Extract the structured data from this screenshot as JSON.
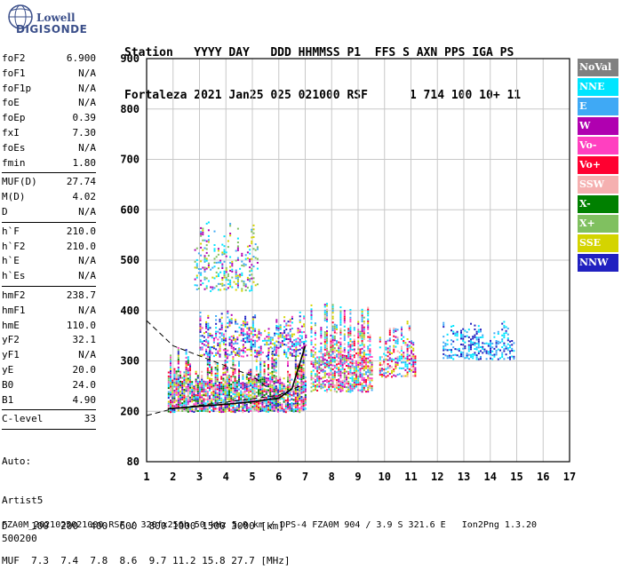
{
  "logo": {
    "line1": "Lowell",
    "line2": "DIGISONDE"
  },
  "header": {
    "line1": "Station   YYYY DAY   DDD HHMMSS P1  FFS S AXN PPS IGA PS",
    "line2": "Fortaleza 2021 Jan25 025 021000 RSF      1 714 100 10+ 11"
  },
  "params": [
    {
      "label": "foF2",
      "value": "6.900"
    },
    {
      "label": "foF1",
      "value": "N/A"
    },
    {
      "label": "foF1p",
      "value": "N/A"
    },
    {
      "label": "foE",
      "value": "N/A"
    },
    {
      "label": "foEp",
      "value": "0.39"
    },
    {
      "label": "fxI",
      "value": "7.30"
    },
    {
      "label": "foEs",
      "value": "N/A"
    },
    {
      "label": "fmin",
      "value": "1.80"
    },
    {
      "sep": true
    },
    {
      "label": "MUF(D)",
      "value": "27.74"
    },
    {
      "label": "M(D)",
      "value": "4.02"
    },
    {
      "label": "D",
      "value": "N/A"
    },
    {
      "sep": true
    },
    {
      "label": "h`F",
      "value": "210.0"
    },
    {
      "label": "h`F2",
      "value": "210.0"
    },
    {
      "label": "h`E",
      "value": "N/A"
    },
    {
      "label": "h`Es",
      "value": "N/A"
    },
    {
      "sep": true
    },
    {
      "label": "hmF2",
      "value": "238.7"
    },
    {
      "label": "hmF1",
      "value": "N/A"
    },
    {
      "label": "hmE",
      "value": "110.0"
    },
    {
      "label": "yF2",
      "value": "32.1"
    },
    {
      "label": "yF1",
      "value": "N/A"
    },
    {
      "label": "yE",
      "value": "20.0"
    },
    {
      "label": "B0",
      "value": "24.0"
    },
    {
      "label": "B1",
      "value": "4.90"
    },
    {
      "sep": true
    },
    {
      "label": "C-level",
      "value": "33"
    },
    {
      "sep": true
    }
  ],
  "auto": {
    "line1": "Auto:",
    "line2": "Artist5",
    "line3": "500200"
  },
  "footer": {
    "line1": "D    100  200  400  600  800 1000 1500 3000 [km]",
    "line2": "MUF  7.3  7.4  7.8  8.6  9.7 11.2 15.8 27.7 [MHz]",
    "line3": "FZA0M_2021025021000.RSF / 320fx256h 50 kHz 5.0 km / DPS-4 FZA0M 904 / 3.9 S 321.6 E   Ion2Png 1.3.20"
  },
  "legend": [
    {
      "label": "NoVal",
      "color": "#808080"
    },
    {
      "label": "NNE",
      "color": "#00e5ff"
    },
    {
      "label": "E",
      "color": "#3fa9f5"
    },
    {
      "label": "W",
      "color": "#b000b0"
    },
    {
      "label": "Vo-",
      "color": "#ff40c0"
    },
    {
      "label": "Vo+",
      "color": "#ff0030"
    },
    {
      "label": "SSW",
      "color": "#f5b0b0"
    },
    {
      "label": "X-",
      "color": "#008000"
    },
    {
      "label": "X+",
      "color": "#80c060"
    },
    {
      "label": "SSE",
      "color": "#d4d400"
    },
    {
      "label": "NNW",
      "color": "#2020c0"
    }
  ],
  "chart_data": {
    "type": "scatter",
    "xlim": [
      1,
      17
    ],
    "ylim": [
      80,
      900
    ],
    "x_ticks": [
      "1",
      "2",
      "3",
      "4",
      "5",
      "6",
      "7",
      "8",
      "9",
      "10",
      "11",
      "12",
      "13",
      "14",
      "15",
      "16",
      "17"
    ],
    "y_ticks": [
      "80",
      "200",
      "300",
      "400",
      "500",
      "600",
      "700",
      "800",
      "900"
    ],
    "y_tick_values": [
      80,
      200,
      300,
      400,
      500,
      600,
      700,
      800,
      900
    ],
    "grid": true,
    "echo_clusters": [
      {
        "x": [
          1.8,
          7.0
        ],
        "y": [
          200,
          330
        ],
        "density": 0.85,
        "colors": [
          "W",
          "E",
          "NNE",
          "Vo-",
          "SSE",
          "SSW",
          "Vo+",
          "X-",
          "X+",
          "NNW"
        ]
      },
      {
        "x": [
          3.0,
          7.0
        ],
        "y": [
          310,
          400
        ],
        "density": 0.5,
        "colors": [
          "W",
          "E",
          "NNE",
          "Vo-",
          "SSE",
          "NNW"
        ]
      },
      {
        "x": [
          2.8,
          5.2
        ],
        "y": [
          440,
          580
        ],
        "density": 0.3,
        "colors": [
          "SSE",
          "X+",
          "NNE",
          "E",
          "W"
        ]
      },
      {
        "x": [
          7.2,
          9.5
        ],
        "y": [
          240,
          420
        ],
        "density": 0.7,
        "colors": [
          "W",
          "E",
          "NNE",
          "Vo-",
          "SSE",
          "SSW",
          "Vo+",
          "X+"
        ]
      },
      {
        "x": [
          9.8,
          11.2
        ],
        "y": [
          270,
          380
        ],
        "density": 0.55,
        "colors": [
          "NNE",
          "E",
          "SSW",
          "SSE",
          "Vo+",
          "W"
        ]
      },
      {
        "x": [
          12.2,
          14.9
        ],
        "y": [
          305,
          380
        ],
        "density": 0.45,
        "colors": [
          "NNW",
          "E",
          "NNE"
        ]
      }
    ],
    "profile_curve": {
      "x": [
        1.8,
        3,
        4,
        5,
        6,
        6.5,
        7.0
      ],
      "y": [
        205,
        210,
        214,
        219,
        226,
        245,
        330
      ]
    },
    "dashed_curve_upper": {
      "x": [
        1.0,
        2.0,
        3.0,
        4.0,
        5.0,
        5.5
      ],
      "y": [
        380,
        330,
        310,
        290,
        270,
        250
      ]
    },
    "dashed_curve_lower": {
      "x": [
        1.0,
        2.0,
        3.0,
        4.0,
        5.0,
        6.0,
        6.8
      ],
      "y": [
        190,
        205,
        212,
        218,
        225,
        232,
        250
      ]
    }
  }
}
